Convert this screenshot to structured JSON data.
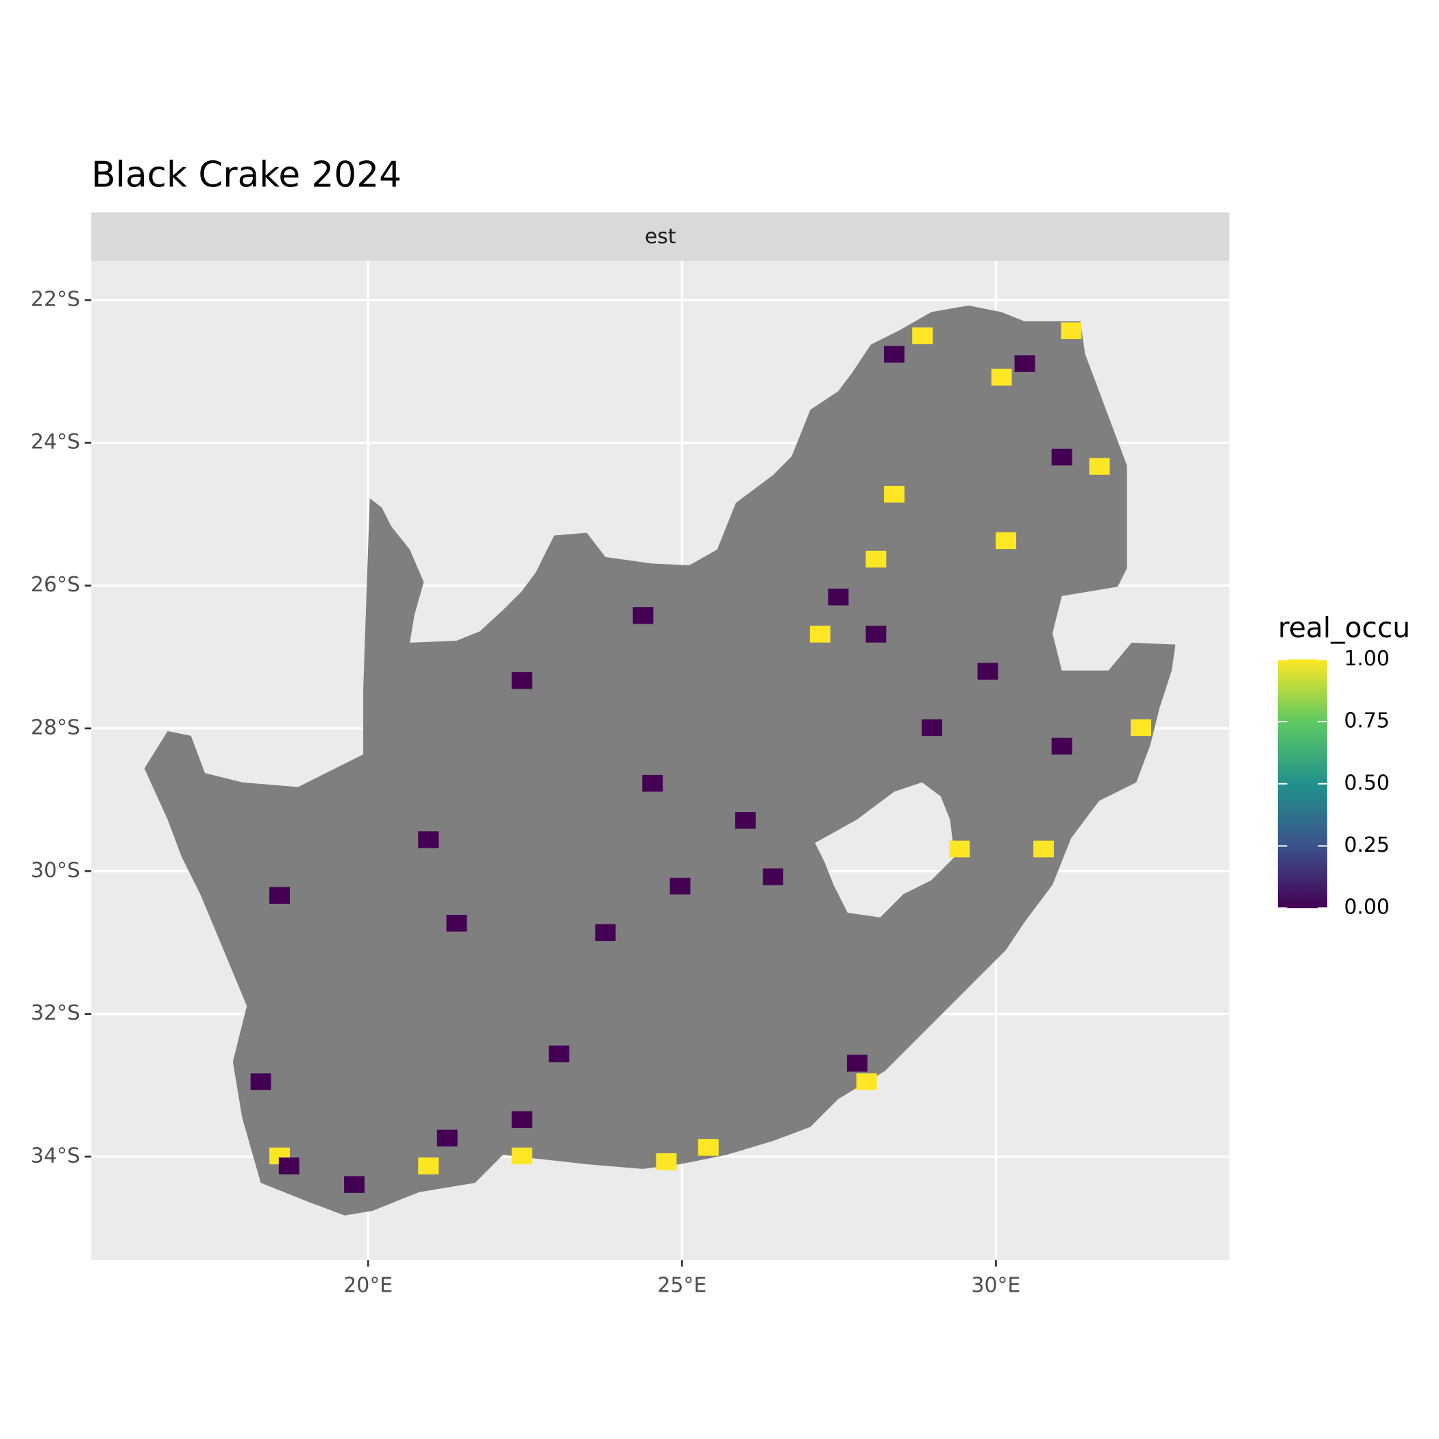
{
  "chart_data": {
    "type": "map",
    "title": "Black Crake 2024",
    "facet": "est",
    "xlim": [
      15.59,
      33.72
    ],
    "ylim": [
      -35.45,
      -21.45
    ],
    "xticks": [
      {
        "value": 20,
        "label": "20°E"
      },
      {
        "value": 25,
        "label": "25°E"
      },
      {
        "value": 30,
        "label": "30°E"
      }
    ],
    "yticks": [
      {
        "value": -22,
        "label": "22°S"
      },
      {
        "value": -24,
        "label": "24°S"
      },
      {
        "value": -26,
        "label": "26°S"
      },
      {
        "value": -28,
        "label": "28°S"
      },
      {
        "value": -30,
        "label": "30°S"
      },
      {
        "value": -32,
        "label": "32°S"
      },
      {
        "value": -34,
        "label": "34°S"
      }
    ],
    "grid": true,
    "x": [
      28.09,
      28.38,
      27.2,
      31.65,
      30.16,
      29.42,
      30.76,
      32.31,
      25.42,
      22.45,
      18.59,
      20.96,
      31.2,
      30.09,
      27.94,
      28.83,
      24.75,
      28.09,
      27.49,
      28.98,
      31.05,
      29.87,
      18.74,
      19.78,
      21.26,
      22.45,
      23.04,
      24.97,
      26.45,
      21.41,
      18.59,
      27.79,
      24.53,
      20.96,
      22.45,
      24.38,
      30.46,
      28.38,
      31.05,
      26.01,
      18.29,
      23.78
    ],
    "y": [
      -25.63,
      -24.72,
      -26.68,
      -24.33,
      -25.37,
      -29.69,
      -29.69,
      -27.99,
      -33.87,
      -33.99,
      -33.99,
      -34.13,
      -22.43,
      -23.08,
      -32.95,
      -22.5,
      -34.07,
      -26.68,
      -26.16,
      -27.99,
      -24.2,
      -27.2,
      -34.13,
      -34.39,
      -33.74,
      -33.48,
      -32.56,
      -30.21,
      -30.08,
      -30.73,
      -30.34,
      -32.69,
      -28.77,
      -29.56,
      -27.33,
      -26.42,
      -22.89,
      -22.76,
      -28.25,
      -29.29,
      -32.95,
      -30.86
    ],
    "values": [
      1,
      1,
      1,
      1,
      1,
      1,
      1,
      1,
      1,
      1,
      1,
      1,
      1,
      1,
      1,
      1,
      1,
      0,
      0,
      0,
      0,
      0,
      0,
      0,
      0,
      0,
      0,
      0,
      0,
      0,
      0,
      0,
      0,
      0,
      0,
      0,
      0,
      0,
      0,
      0,
      0,
      0
    ],
    "colorbar": {
      "title": "real_occu",
      "limits": [
        0,
        1
      ],
      "ticks": [
        {
          "value": 0,
          "label": "0.00"
        },
        {
          "value": 0.25,
          "label": "0.25"
        },
        {
          "value": 0.5,
          "label": "0.50"
        },
        {
          "value": 0.75,
          "label": "0.75"
        },
        {
          "value": 1,
          "label": "1.00"
        }
      ],
      "colors": [
        "#440154",
        "#3b528b",
        "#21918c",
        "#5ec962",
        "#fde725"
      ]
    }
  }
}
